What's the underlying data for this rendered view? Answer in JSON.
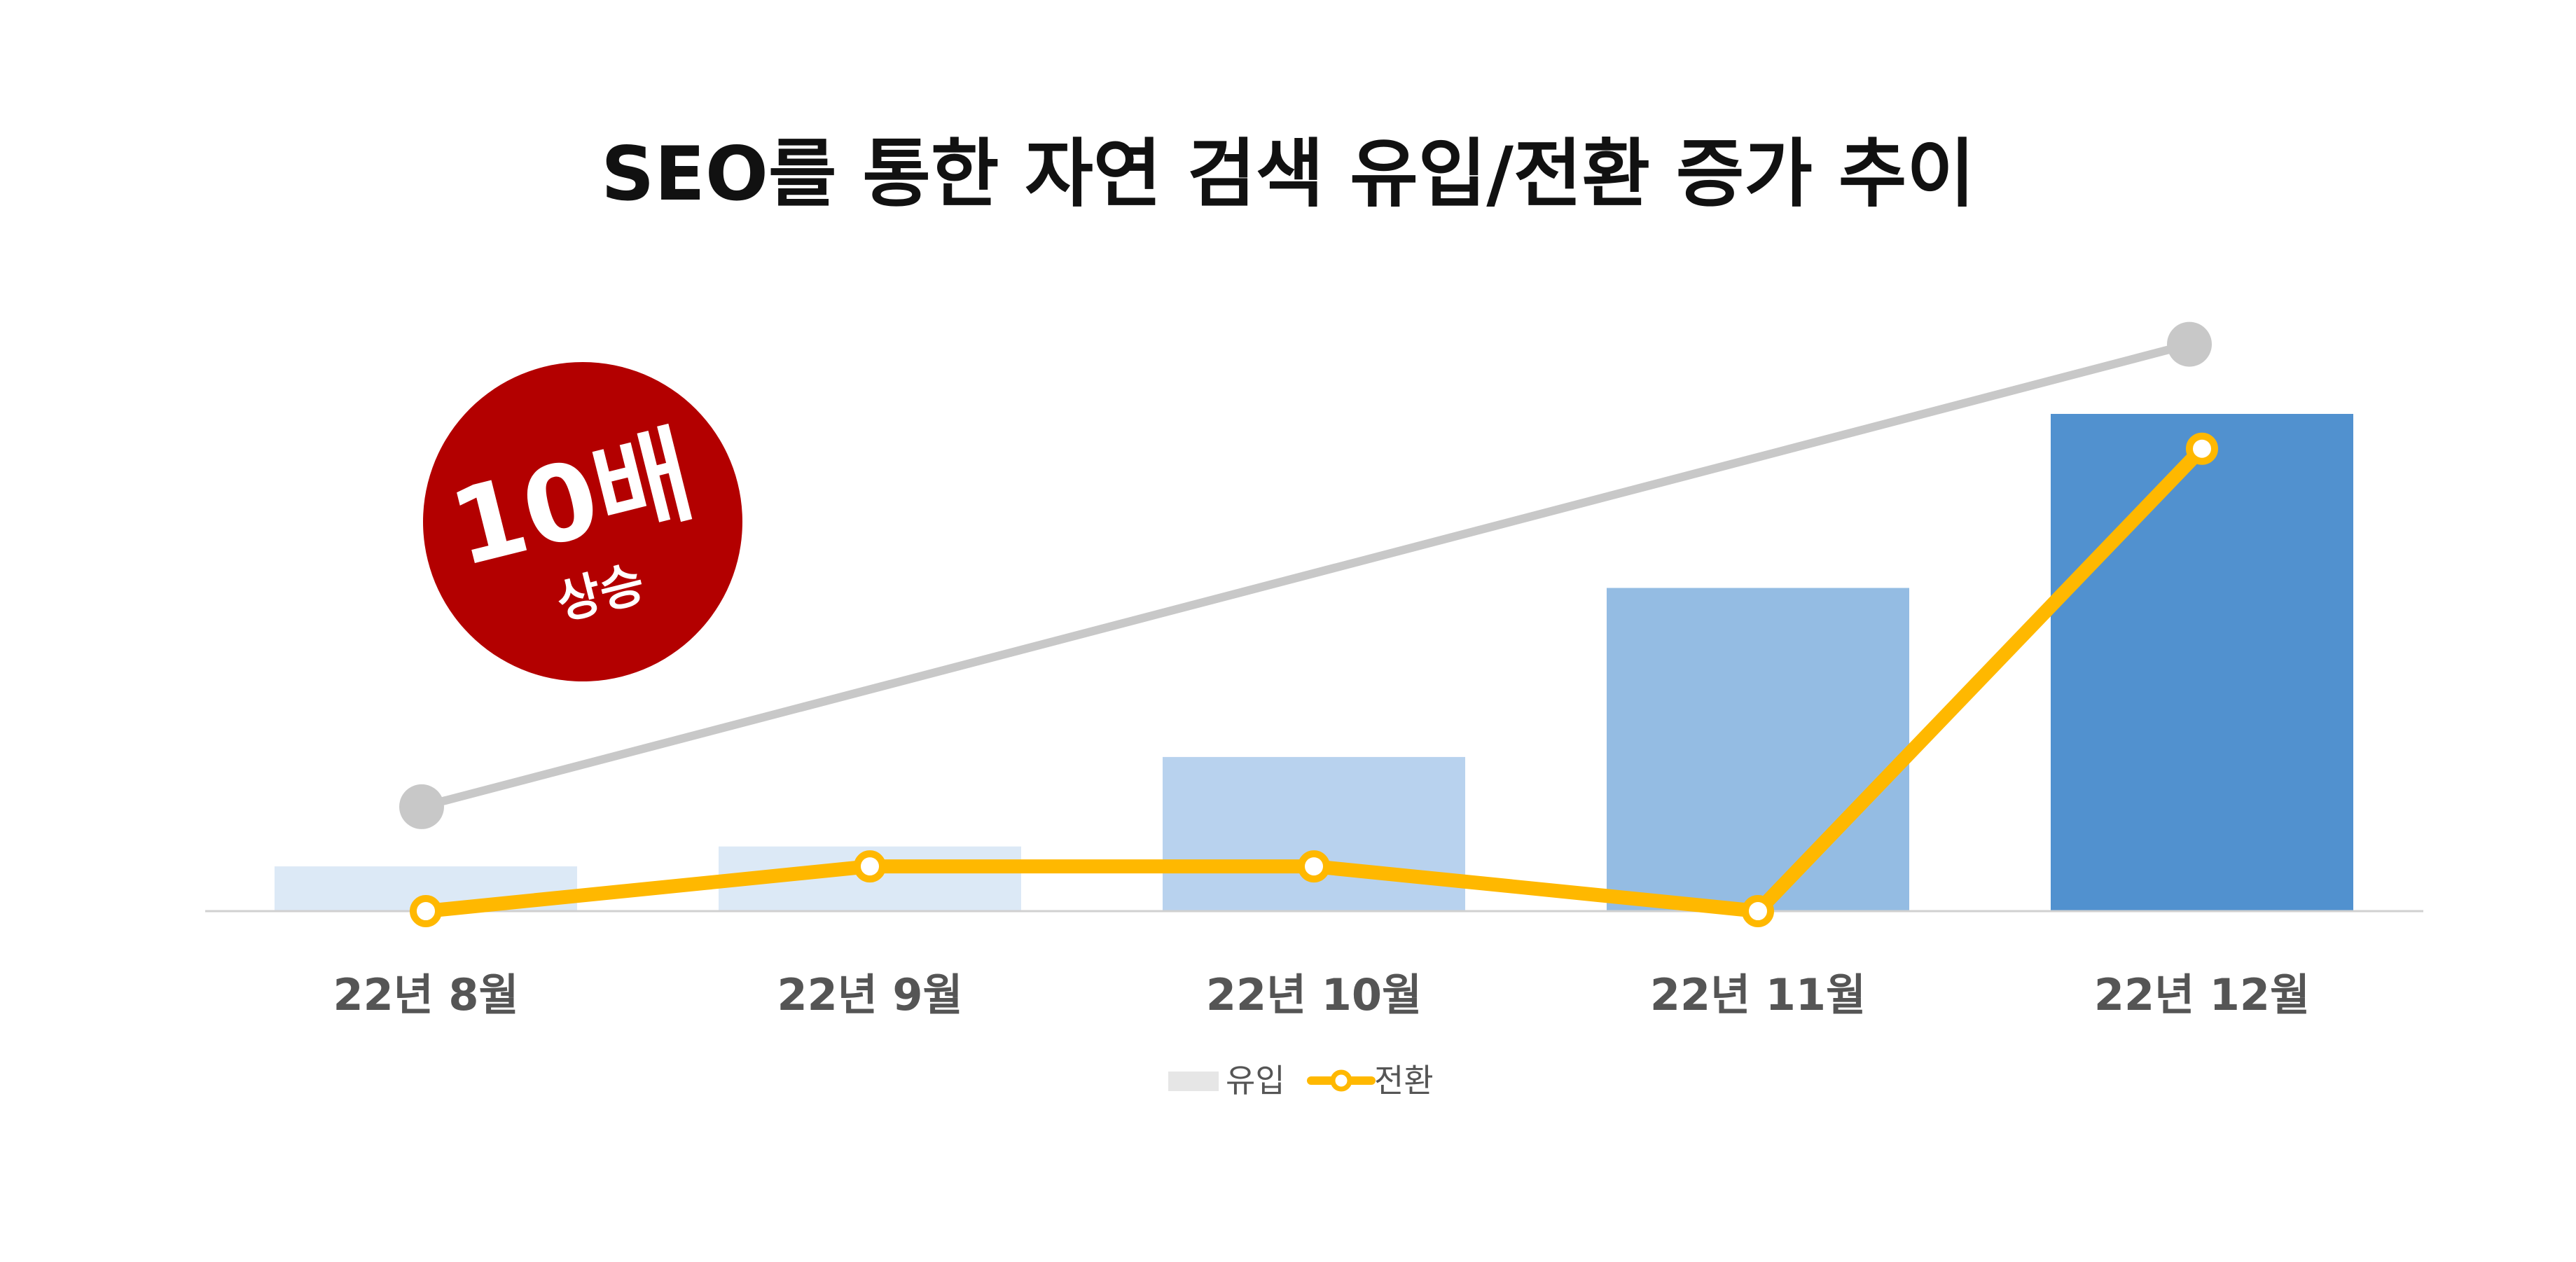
{
  "chart_data": {
    "type": "bar",
    "title": "SEO를 통한 자연 검색 유입/전환 증가 추이",
    "categories": [
      "22년 8월",
      "22년 9월",
      "22년 10월",
      "22년 11월",
      "22년 12월"
    ],
    "ylim": [
      0,
      100
    ],
    "grid": false,
    "legend_position": "bottom",
    "series": [
      {
        "name": "유입",
        "type": "bar",
        "values": [
          9,
          13,
          31,
          65,
          100
        ],
        "colors": [
          "#dce9f6",
          "#dce9f6",
          "#b8d2ee",
          "#94bce3",
          "#5191cf"
        ],
        "legend_color": "#e6e6e6"
      },
      {
        "name": "전환",
        "type": "line",
        "values": [
          0,
          9,
          9,
          0,
          93
        ],
        "color": "#ffb800",
        "marker_fill": "#ffffff"
      }
    ],
    "trend": {
      "from_category": 0,
      "to_category": 4,
      "values": [
        21,
        114
      ],
      "color": "#c8c8c8"
    },
    "annotation": {
      "main": "10배",
      "sub": "상승",
      "color": "#b30000",
      "text_color": "#ffffff"
    },
    "axis_color": "#d0d0d0"
  }
}
